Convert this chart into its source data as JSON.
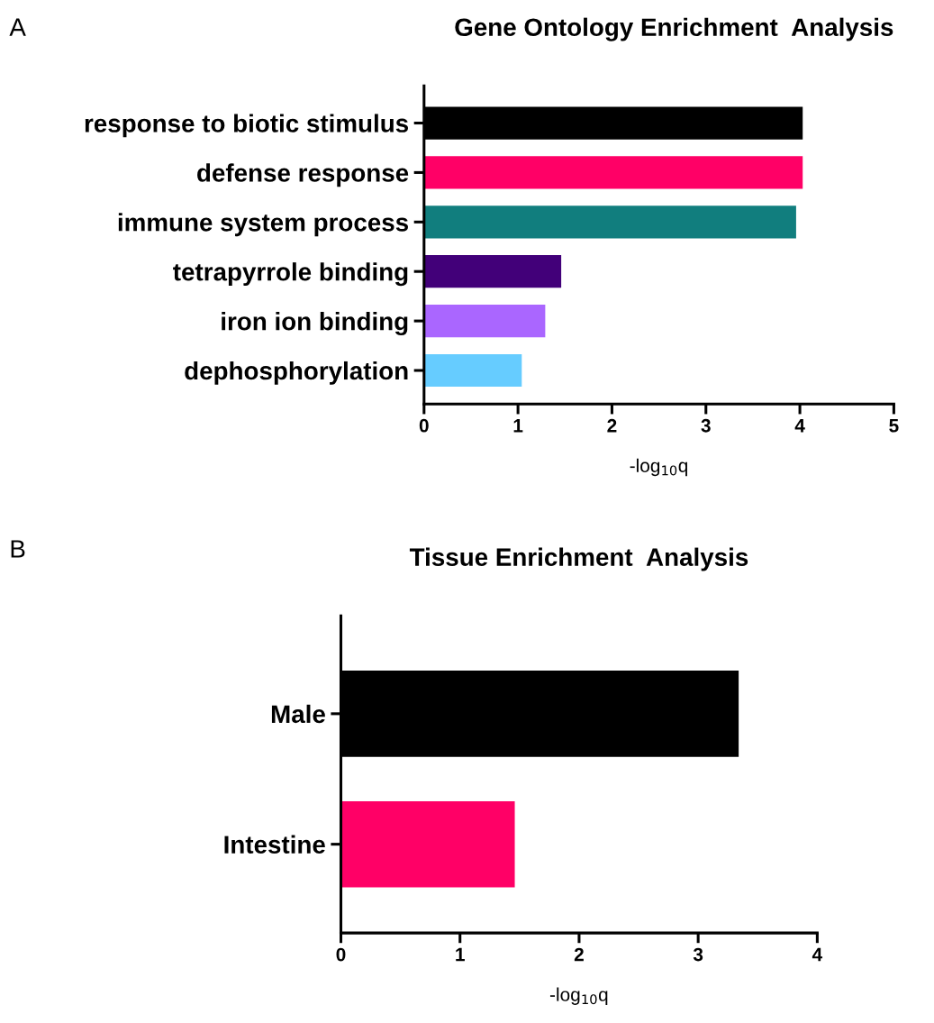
{
  "chart_data": [
    {
      "type": "bar",
      "orientation": "horizontal",
      "title": "Gene Ontology Enrichment  Analysis",
      "xlabel": "-log$_{10}$q",
      "annotations": [
        "A"
      ],
      "categories": [
        "response to biotic stimulus",
        "defense response",
        "immune system process",
        "tetrapyrrole binding",
        "iron ion binding",
        "dephosphorylation"
      ],
      "values": [
        4.03,
        4.03,
        3.96,
        1.46,
        1.29,
        1.04
      ],
      "colors": [
        "#000000",
        "#ff0066",
        "#117e7e",
        "#420079",
        "#aa66ff",
        "#66ccff"
      ],
      "xlim": [
        0,
        5
      ],
      "xticks": [
        0,
        1,
        2,
        3,
        4,
        5
      ],
      "grid": false,
      "legend": false
    },
    {
      "type": "bar",
      "orientation": "horizontal",
      "title": "Tissue Enrichment  Analysis",
      "xlabel": "-log$_{10}$q",
      "annotations": [
        "B"
      ],
      "categories": [
        "Male",
        "Intestine"
      ],
      "values": [
        3.34,
        1.46
      ],
      "colors": [
        "#000000",
        "#ff0066"
      ],
      "xlim": [
        0,
        4
      ],
      "xticks": [
        0,
        1,
        2,
        3,
        4
      ],
      "grid": false,
      "legend": false
    }
  ]
}
